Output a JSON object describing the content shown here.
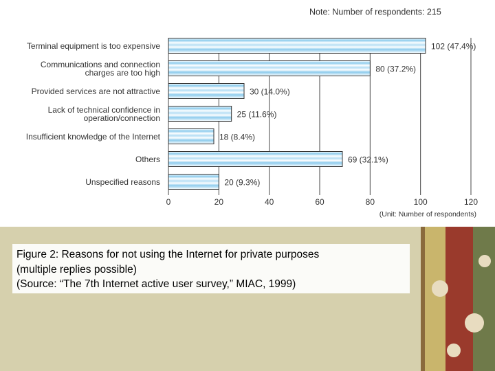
{
  "chart_data": {
    "type": "bar",
    "orientation": "horizontal",
    "note": "Note: Number of respondents: 215",
    "unit": "(Unit: Number of respondents)",
    "categories": [
      "Terminal equipment is too expensive",
      "Communications and connection\ncharges are too high",
      "Provided services are not attractive",
      "Lack of technical confidence in\noperation/connection",
      "Insufficient knowledge of the Internet",
      "Others",
      "Unspecified reasons"
    ],
    "values": [
      102,
      80,
      30,
      25,
      18,
      69,
      20
    ],
    "value_labels": [
      "102 (47.4%)",
      "80 (37.2%)",
      "30 (14.0%)",
      "25 (11.6%)",
      "18 (8.4%)",
      "69 (32.1%)",
      "20 (9.3%)"
    ],
    "color": "#9fd4ef",
    "xlim": [
      0,
      120
    ],
    "xticks": [
      0,
      20,
      40,
      60,
      80,
      100,
      120
    ],
    "grid": true
  },
  "caption": [
    "Figure 2: Reasons for not using the Internet for private purposes",
    "(multiple replies possible)",
    "(Source: “The 7th Internet active user survey,” MIAC, 1999)"
  ]
}
